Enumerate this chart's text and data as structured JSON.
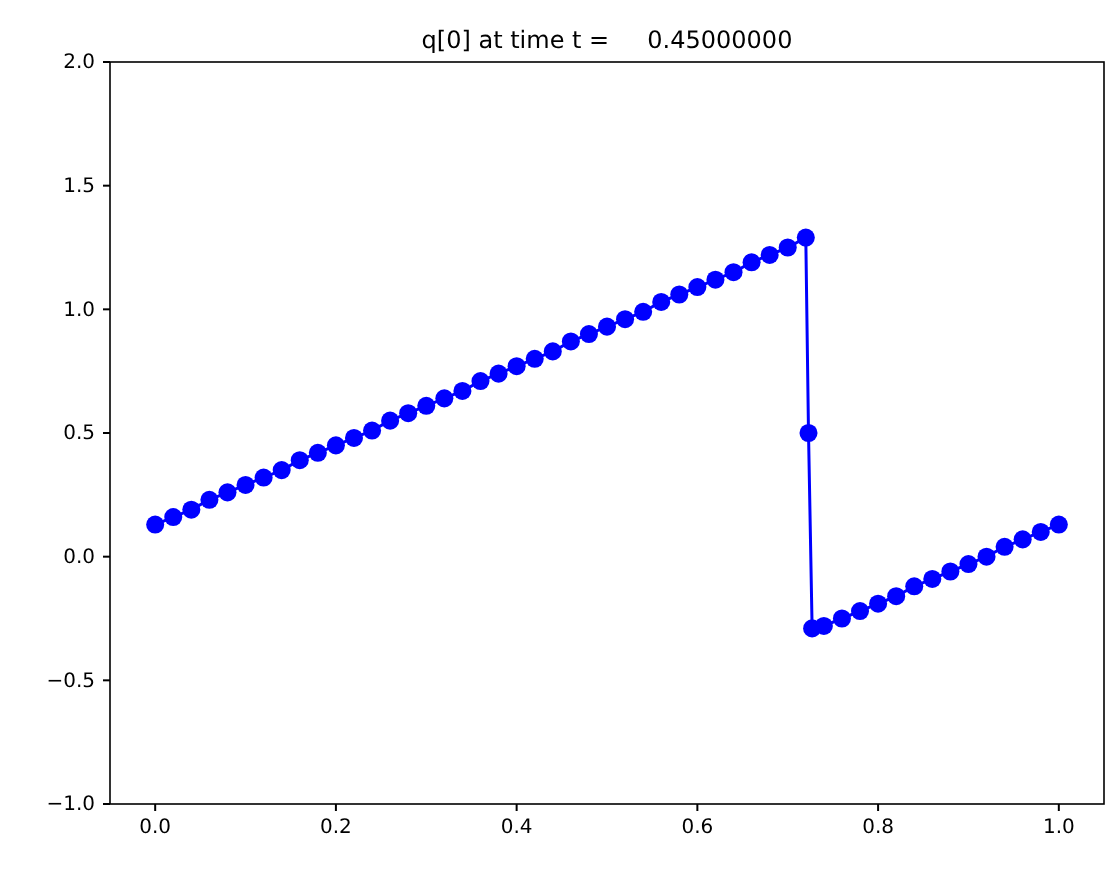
{
  "chart_data": {
    "type": "line",
    "title": "q[0] at time t =     0.45000000",
    "xlim": [
      -0.05,
      1.05
    ],
    "ylim": [
      -1,
      2
    ],
    "xticks": [
      {
        "value": 0,
        "label": "0.0"
      },
      {
        "value": 0.2,
        "label": "0.2"
      },
      {
        "value": 0.4,
        "label": "0.4"
      },
      {
        "value": 0.6,
        "label": "0.6"
      },
      {
        "value": 0.8,
        "label": "0.8"
      },
      {
        "value": 1,
        "label": "1.0"
      }
    ],
    "yticks": [
      {
        "value": -1,
        "label": "−1.0"
      },
      {
        "value": -0.5,
        "label": "−0.5"
      },
      {
        "value": 0,
        "label": "0.0"
      },
      {
        "value": 0.5,
        "label": "0.5"
      },
      {
        "value": 1,
        "label": "1.0"
      },
      {
        "value": 1.5,
        "label": "1.5"
      },
      {
        "value": 2,
        "label": "2.0"
      }
    ],
    "grid": false,
    "marker": "circle",
    "line_style": "solid",
    "series": [
      {
        "color": "#0000ff",
        "x": [
          0,
          0.02,
          0.04,
          0.06,
          0.08,
          0.1,
          0.12,
          0.14,
          0.16,
          0.18,
          0.2,
          0.22,
          0.24,
          0.26,
          0.28,
          0.3,
          0.32,
          0.34,
          0.36,
          0.38,
          0.4,
          0.42,
          0.44,
          0.46,
          0.48,
          0.5,
          0.52,
          0.54,
          0.56,
          0.58,
          0.6,
          0.62,
          0.64,
          0.66,
          0.68,
          0.7,
          0.72,
          0.723,
          0.727,
          0.74,
          0.76,
          0.78,
          0.8,
          0.82,
          0.84,
          0.86,
          0.88,
          0.9,
          0.92,
          0.94,
          0.96,
          0.98,
          1.0
        ],
        "values": [
          0.13,
          0.16,
          0.19,
          0.23,
          0.26,
          0.29,
          0.32,
          0.35,
          0.39,
          0.42,
          0.45,
          0.48,
          0.51,
          0.55,
          0.58,
          0.61,
          0.64,
          0.67,
          0.71,
          0.74,
          0.77,
          0.8,
          0.83,
          0.87,
          0.9,
          0.93,
          0.96,
          0.99,
          1.03,
          1.06,
          1.09,
          1.12,
          1.15,
          1.19,
          1.22,
          1.25,
          1.29,
          0.5,
          -0.29,
          -0.28,
          -0.25,
          -0.22,
          -0.19,
          -0.16,
          -0.12,
          -0.09,
          -0.06,
          -0.03,
          0.0,
          0.04,
          0.07,
          0.1,
          0.13
        ]
      }
    ]
  }
}
